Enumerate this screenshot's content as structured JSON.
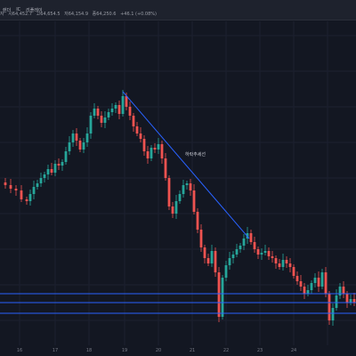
{
  "toolbar": {
    "label_chart": "렌더",
    "label_indicator_ic": "IC",
    "label_indicator_name": "리플레이",
    "menu_icon": "settings-icon"
  },
  "ohlc": {
    "symbol": "자",
    "open": "시64,452.7",
    "high": "고64,654.5",
    "low": "저64,154.9",
    "close": "종64,250.6",
    "change": "+46.1 (+0.08%)"
  },
  "annotation": {
    "trendline_label": "하락추세선"
  },
  "colors": {
    "background": "#131722",
    "up": "#26a69a",
    "down": "#ef5350",
    "trendline": "#2962ff",
    "hline": "#2962ff",
    "axis_text": "#787b86"
  },
  "x_axis": {
    "ticks": [
      "16",
      "17",
      "18",
      "19",
      "20",
      "21",
      "22",
      "23",
      "24"
    ]
  }
}
